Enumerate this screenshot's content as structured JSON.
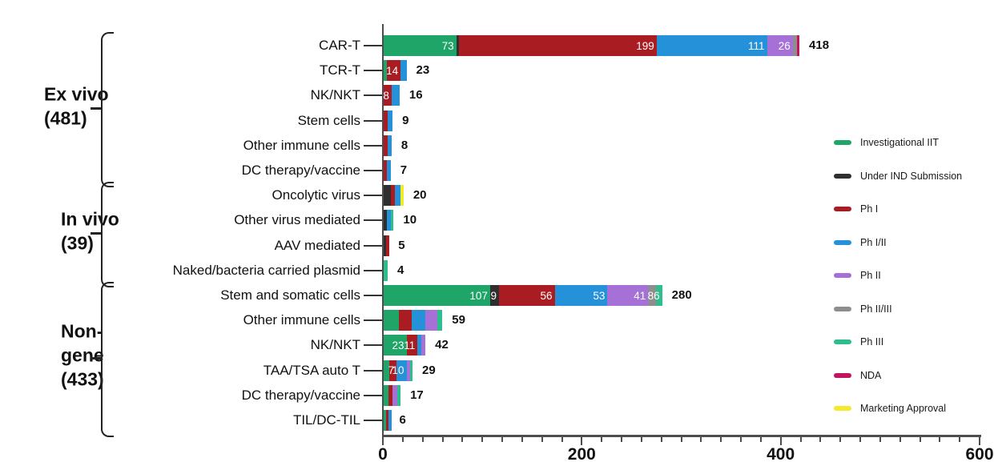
{
  "chart_data": {
    "type": "bar",
    "orientation": "horizontal",
    "stacked": true,
    "x_axis": {
      "min": 0,
      "max": 600,
      "major_tick_labels": [
        "0",
        "200",
        "400",
        "600"
      ],
      "minor_step": 20
    },
    "legend_position": "right",
    "legend": [
      {
        "name": "Investigational IIT",
        "color": "#1EA567"
      },
      {
        "name": "Under IND Submission",
        "color": "#2F2F2F"
      },
      {
        "name": "Ph I",
        "color": "#A81C22"
      },
      {
        "name": "Ph I/II",
        "color": "#2491D9"
      },
      {
        "name": "Ph II",
        "color": "#A671D6"
      },
      {
        "name": "Ph II/III",
        "color": "#8E8E8E"
      },
      {
        "name": "Ph III",
        "color": "#2DBE8D"
      },
      {
        "name": "NDA",
        "color": "#C2155F"
      },
      {
        "name": "Marketing Approval",
        "color": "#F2EA2A"
      }
    ],
    "groups": [
      {
        "label_lines": [
          "Ex vivo",
          "(481)"
        ],
        "total": 481,
        "rows": [
          {
            "category": "CAR-T",
            "total": 418,
            "segments": [
              {
                "phase": "Investigational IIT",
                "value": 73,
                "label": "73"
              },
              {
                "phase": "Under IND Submission",
                "value": 2
              },
              {
                "phase": "Ph I",
                "value": 199,
                "label": "199"
              },
              {
                "phase": "Ph I/II",
                "value": 111,
                "label": "111"
              },
              {
                "phase": "Ph II",
                "value": 26,
                "label": "26"
              },
              {
                "phase": "Ph II/III",
                "value": 4
              },
              {
                "phase": "NDA",
                "value": 3
              }
            ]
          },
          {
            "category": "TCR-T",
            "total": 23,
            "segments": [
              {
                "phase": "Investigational IIT",
                "value": 3
              },
              {
                "phase": "Ph I",
                "value": 14,
                "label": "14"
              },
              {
                "phase": "Ph I/II",
                "value": 6
              }
            ]
          },
          {
            "category": "NK/NKT",
            "total": 16,
            "segments": [
              {
                "phase": "Ph I",
                "value": 8,
                "label": "8"
              },
              {
                "phase": "Ph I/II",
                "value": 8
              }
            ]
          },
          {
            "category": "Stem cells",
            "total": 9,
            "segments": [
              {
                "phase": "Ph I",
                "value": 4
              },
              {
                "phase": "Ph I/II",
                "value": 5
              }
            ]
          },
          {
            "category": "Other immune cells",
            "total": 8,
            "segments": [
              {
                "phase": "Ph I",
                "value": 4
              },
              {
                "phase": "Ph I/II",
                "value": 4
              }
            ]
          },
          {
            "category": "DC therapy/vaccine",
            "total": 7,
            "segments": [
              {
                "phase": "Ph I",
                "value": 3
              },
              {
                "phase": "Ph I/II",
                "value": 4
              }
            ]
          }
        ]
      },
      {
        "label_lines": [
          "In vivo",
          "(39)"
        ],
        "total": 39,
        "rows": [
          {
            "category": "Oncolytic virus",
            "total": 20,
            "segments": [
              {
                "phase": "Under IND Submission",
                "value": 7
              },
              {
                "phase": "Ph I",
                "value": 4
              },
              {
                "phase": "Ph I/II",
                "value": 6
              },
              {
                "phase": "Marketing Approval",
                "value": 3
              }
            ]
          },
          {
            "category": "Other virus mediated",
            "total": 10,
            "segments": [
              {
                "phase": "Under IND Submission",
                "value": 3
              },
              {
                "phase": "Ph I/II",
                "value": 4
              },
              {
                "phase": "Ph III",
                "value": 3
              }
            ]
          },
          {
            "category": "AAV mediated",
            "total": 5,
            "segments": [
              {
                "phase": "Under IND Submission",
                "value": 2
              },
              {
                "phase": "Ph I",
                "value": 3
              }
            ]
          },
          {
            "category": "Naked/bacteria carried plasmid",
            "total": 4,
            "segments": [
              {
                "phase": "Ph III",
                "value": 4
              }
            ]
          }
        ]
      },
      {
        "label_lines": [
          "Non-",
          "gene",
          "(433)"
        ],
        "total": 433,
        "rows": [
          {
            "category": "Stem and somatic cells",
            "total": 280,
            "segments": [
              {
                "phase": "Investigational IIT",
                "value": 107,
                "label": "107"
              },
              {
                "phase": "Under IND Submission",
                "value": 9,
                "label": "9"
              },
              {
                "phase": "Ph I",
                "value": 56,
                "label": "56"
              },
              {
                "phase": "Ph I/II",
                "value": 53,
                "label": "53"
              },
              {
                "phase": "Ph II",
                "value": 41,
                "label": "41"
              },
              {
                "phase": "Ph II/III",
                "value": 8,
                "label": "8"
              },
              {
                "phase": "Ph III",
                "value": 6,
                "label": "6"
              }
            ]
          },
          {
            "category": "Other immune cells",
            "total": 59,
            "segments": [
              {
                "phase": "Investigational IIT",
                "value": 15
              },
              {
                "phase": "Ph I",
                "value": 13
              },
              {
                "phase": "Ph I/II",
                "value": 14
              },
              {
                "phase": "Ph II",
                "value": 12
              },
              {
                "phase": "Ph III",
                "value": 5
              }
            ]
          },
          {
            "category": "NK/NKT",
            "total": 42,
            "segments": [
              {
                "phase": "Investigational IIT",
                "value": 23,
                "label": "23"
              },
              {
                "phase": "Ph I",
                "value": 11,
                "label": "11"
              },
              {
                "phase": "Ph I/II",
                "value": 4
              },
              {
                "phase": "Ph II",
                "value": 4
              }
            ]
          },
          {
            "category": "TAA/TSA auto T",
            "total": 29,
            "segments": [
              {
                "phase": "Investigational IIT",
                "value": 6
              },
              {
                "phase": "Ph I",
                "value": 7,
                "label": "7"
              },
              {
                "phase": "Ph I/II",
                "value": 10,
                "label": "10"
              },
              {
                "phase": "Ph II",
                "value": 4
              },
              {
                "phase": "Ph III",
                "value": 2
              }
            ]
          },
          {
            "category": "DC therapy/vaccine",
            "total": 17,
            "segments": [
              {
                "phase": "Investigational IIT",
                "value": 5
              },
              {
                "phase": "Ph I",
                "value": 4
              },
              {
                "phase": "Ph II",
                "value": 5
              },
              {
                "phase": "Ph III",
                "value": 3
              }
            ]
          },
          {
            "category": "TIL/DC-TIL",
            "total": 6,
            "segments": [
              {
                "phase": "Investigational IIT",
                "value": 1
              },
              {
                "phase": "Ph I",
                "value": 2
              },
              {
                "phase": "Ph I/II",
                "value": 3
              }
            ]
          }
        ]
      }
    ]
  }
}
